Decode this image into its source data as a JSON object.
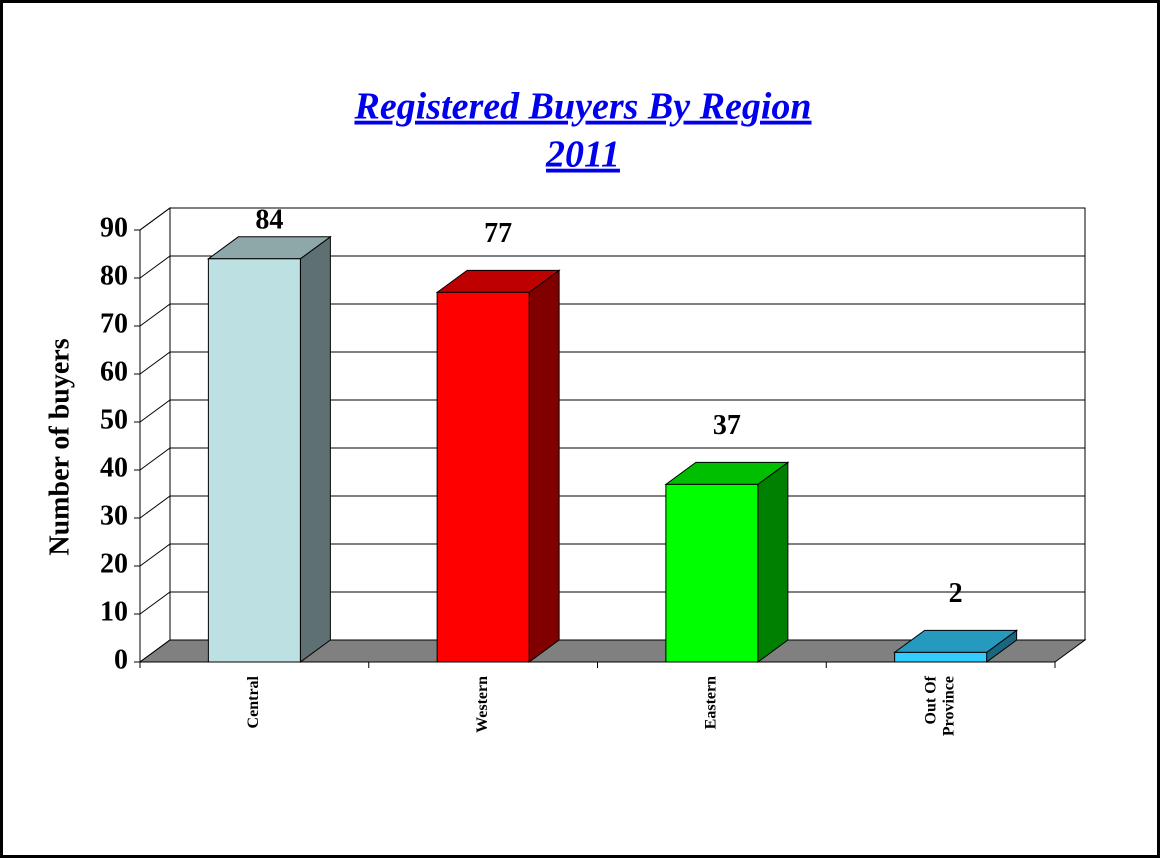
{
  "chart_data": {
    "type": "bar3d",
    "title": "Registered Buyers By Region",
    "subtitle": "2011",
    "y_label": "Number of buyers",
    "categories": [
      "Central",
      "Western",
      "Eastern",
      "Out Of Province"
    ],
    "values": [
      84,
      77,
      37,
      2
    ],
    "colors": [
      "#bde0e3",
      "#ff0000",
      "#00ff00",
      "#33ccff"
    ],
    "ylim": [
      0,
      90
    ],
    "yticks": [
      0,
      10,
      20,
      30,
      40,
      50,
      60,
      70,
      80,
      90
    ],
    "grid": true
  }
}
